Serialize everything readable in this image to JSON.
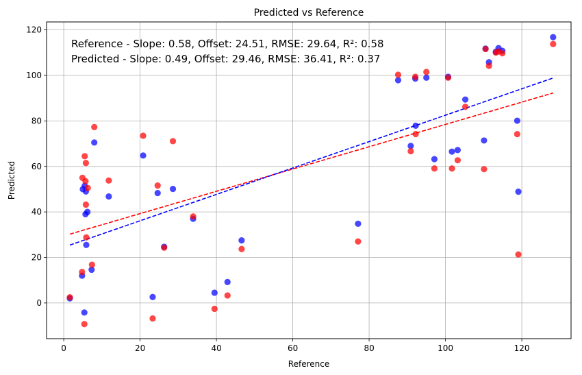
{
  "chart_data": {
    "type": "scatter",
    "title": "Predicted vs Reference",
    "xlabel": "Reference",
    "ylabel": "Predicted",
    "xlim": [
      -4.5,
      132.9
    ],
    "ylim": [
      -15.7,
      123.5
    ],
    "xticks": [
      0,
      20,
      40,
      60,
      80,
      100,
      120
    ],
    "yticks": [
      0,
      20,
      40,
      60,
      80,
      100,
      120
    ],
    "grid": true,
    "annotations": [
      "Reference - Slope: 0.58, Offset: 24.51, RMSE: 29.64, R²: 0.58",
      "Predicted - Slope: 0.49, Offset: 29.46, RMSE: 36.41, R²: 0.37"
    ],
    "series": [
      {
        "color": "#0000ff",
        "points": [
          [
            1.6,
            2.0
          ],
          [
            4.8,
            12.0
          ],
          [
            5.0,
            50.0
          ],
          [
            5.4,
            -4.2
          ],
          [
            5.5,
            51.5
          ],
          [
            5.7,
            39.0
          ],
          [
            5.8,
            49.0
          ],
          [
            5.9,
            25.5
          ],
          [
            6.2,
            40.0
          ],
          [
            7.3,
            14.6
          ],
          [
            8.0,
            70.5
          ],
          [
            11.8,
            46.8
          ],
          [
            20.8,
            64.8
          ],
          [
            23.3,
            2.6
          ],
          [
            24.6,
            48.3
          ],
          [
            26.3,
            24.7
          ],
          [
            28.6,
            50.1
          ],
          [
            33.9,
            37.0
          ],
          [
            39.5,
            4.5
          ],
          [
            42.9,
            9.2
          ],
          [
            46.6,
            27.5
          ],
          [
            77.1,
            34.8
          ],
          [
            87.6,
            97.9
          ],
          [
            90.9,
            69.0
          ],
          [
            92.1,
            98.6
          ],
          [
            92.2,
            77.9
          ],
          [
            95.0,
            99.0
          ],
          [
            97.1,
            63.2
          ],
          [
            100.7,
            99.4
          ],
          [
            101.7,
            66.5
          ],
          [
            103.2,
            67.2
          ],
          [
            105.2,
            89.4
          ],
          [
            110.1,
            71.4
          ],
          [
            110.5,
            111.8
          ],
          [
            111.4,
            105.8
          ],
          [
            113.2,
            110.4
          ],
          [
            113.9,
            112.0
          ],
          [
            114.9,
            110.8
          ],
          [
            118.8,
            80.1
          ],
          [
            119.1,
            48.9
          ],
          [
            128.2,
            116.8
          ]
        ],
        "fit": {
          "slope": 0.58,
          "offset": 24.51,
          "x_range": [
            1.6,
            128.2
          ]
        }
      },
      {
        "color": "#ff0000",
        "points": [
          [
            1.6,
            2.5
          ],
          [
            4.8,
            13.6
          ],
          [
            4.9,
            55.0
          ],
          [
            5.4,
            -9.3
          ],
          [
            5.5,
            64.5
          ],
          [
            5.7,
            53.5
          ],
          [
            5.8,
            61.5
          ],
          [
            5.8,
            43.2
          ],
          [
            5.9,
            28.8
          ],
          [
            6.3,
            50.5
          ],
          [
            7.4,
            16.8
          ],
          [
            8.0,
            77.3
          ],
          [
            11.8,
            53.8
          ],
          [
            20.8,
            73.5
          ],
          [
            23.3,
            -6.8
          ],
          [
            24.6,
            51.6
          ],
          [
            26.3,
            24.3
          ],
          [
            28.6,
            71.1
          ],
          [
            33.9,
            38.0
          ],
          [
            39.5,
            -2.6
          ],
          [
            42.9,
            3.3
          ],
          [
            46.6,
            23.7
          ],
          [
            77.1,
            27.0
          ],
          [
            87.6,
            100.3
          ],
          [
            90.9,
            66.7
          ],
          [
            92.1,
            99.4
          ],
          [
            92.2,
            74.2
          ],
          [
            95.0,
            101.5
          ],
          [
            97.1,
            59.1
          ],
          [
            100.7,
            99.0
          ],
          [
            101.7,
            59.1
          ],
          [
            103.2,
            62.7
          ],
          [
            105.2,
            86.2
          ],
          [
            110.1,
            58.8
          ],
          [
            110.5,
            111.6
          ],
          [
            111.4,
            104.2
          ],
          [
            113.2,
            110.0
          ],
          [
            113.9,
            110.5
          ],
          [
            114.9,
            109.7
          ],
          [
            118.8,
            74.2
          ],
          [
            119.1,
            21.3
          ],
          [
            128.2,
            113.8
          ]
        ],
        "fit": {
          "slope": 0.49,
          "offset": 29.46,
          "x_range": [
            1.6,
            128.2
          ]
        }
      }
    ]
  }
}
